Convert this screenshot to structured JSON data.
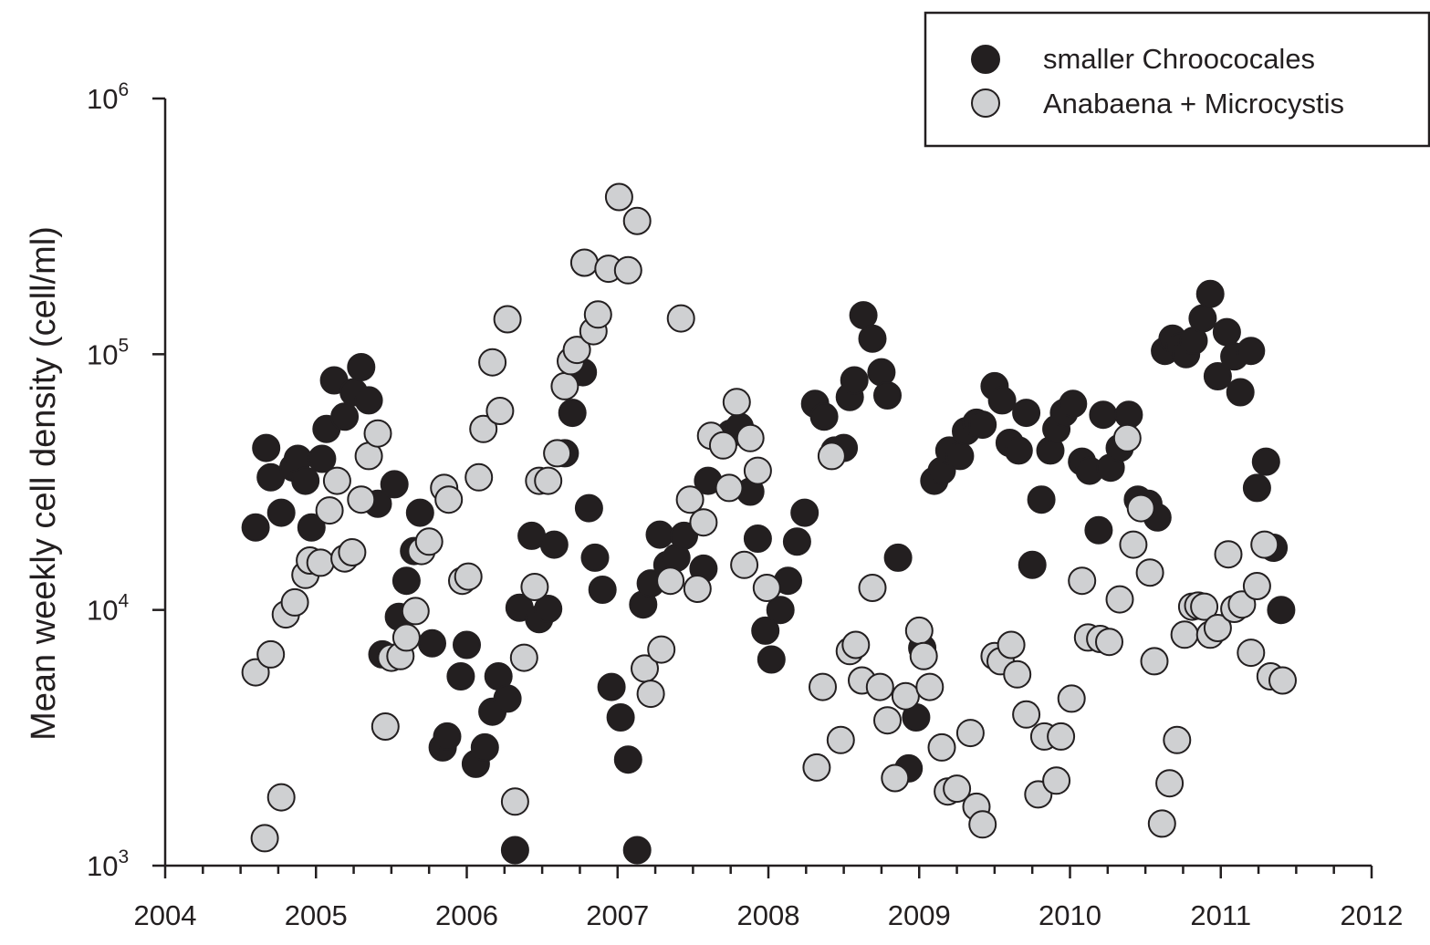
{
  "chart_data": {
    "type": "scatter",
    "title": "",
    "xlabel": "",
    "ylabel": "Mean weekly cell density (cell/ml)",
    "x_ticks": [
      "2004",
      "2005",
      "2006",
      "2007",
      "2008",
      "2009",
      "2010",
      "2011",
      "2012"
    ],
    "xlim": [
      2004,
      2012
    ],
    "y_scale": "log",
    "ylim": [
      1000,
      1000000
    ],
    "y_ticks": [
      {
        "base": "10",
        "exp": "3"
      },
      {
        "base": "10",
        "exp": "4"
      },
      {
        "base": "10",
        "exp": "5"
      },
      {
        "base": "10",
        "exp": "6"
      }
    ],
    "grid": false,
    "legend_position": "top-right",
    "colors": {
      "series1": "#231f20",
      "series2": "#cfd0d2",
      "outline": "#231f20"
    },
    "series": [
      {
        "name": "smaller Chroococales",
        "points": [
          [
            2004.6,
            21000
          ],
          [
            2004.67,
            43000
          ],
          [
            2004.7,
            33000
          ],
          [
            2004.77,
            24000
          ],
          [
            2004.85,
            36000
          ],
          [
            2004.88,
            39000
          ],
          [
            2004.93,
            32000
          ],
          [
            2004.97,
            21000
          ],
          [
            2005.04,
            39000
          ],
          [
            2005.07,
            51000
          ],
          [
            2005.12,
            79000
          ],
          [
            2005.19,
            57000
          ],
          [
            2005.25,
            71000
          ],
          [
            2005.3,
            89000
          ],
          [
            2005.35,
            66000
          ],
          [
            2005.41,
            26000
          ],
          [
            2005.44,
            6700
          ],
          [
            2005.52,
            31000
          ],
          [
            2005.55,
            9400
          ],
          [
            2005.6,
            13000
          ],
          [
            2005.65,
            17000
          ],
          [
            2005.69,
            24000
          ],
          [
            2005.77,
            7400
          ],
          [
            2005.84,
            2900
          ],
          [
            2005.87,
            3200
          ],
          [
            2005.96,
            5500
          ],
          [
            2006.0,
            7300
          ],
          [
            2006.06,
            2500
          ],
          [
            2006.12,
            2900
          ],
          [
            2006.17,
            4000
          ],
          [
            2006.21,
            5500
          ],
          [
            2006.27,
            4500
          ],
          [
            2006.32,
            1150
          ],
          [
            2006.35,
            10200
          ],
          [
            2006.43,
            19500
          ],
          [
            2006.48,
            9200
          ],
          [
            2006.54,
            10100
          ],
          [
            2006.58,
            18000
          ],
          [
            2006.65,
            41000
          ],
          [
            2006.7,
            59000
          ],
          [
            2006.77,
            85000
          ],
          [
            2006.81,
            25000
          ],
          [
            2006.85,
            16000
          ],
          [
            2006.9,
            12000
          ],
          [
            2006.96,
            5000
          ],
          [
            2007.02,
            3800
          ],
          [
            2007.07,
            2600
          ],
          [
            2007.13,
            1150
          ],
          [
            2007.17,
            10500
          ],
          [
            2007.22,
            12700
          ],
          [
            2007.28,
            19700
          ],
          [
            2007.33,
            15000
          ],
          [
            2007.39,
            16000
          ],
          [
            2007.44,
            19500
          ],
          [
            2007.57,
            14500
          ],
          [
            2007.6,
            32000
          ],
          [
            2007.75,
            49000
          ],
          [
            2007.81,
            52000
          ],
          [
            2007.88,
            29000
          ],
          [
            2007.93,
            19000
          ],
          [
            2007.98,
            8300
          ],
          [
            2008.02,
            6400
          ],
          [
            2008.08,
            10000
          ],
          [
            2008.13,
            13000
          ],
          [
            2008.19,
            18500
          ],
          [
            2008.24,
            24000
          ],
          [
            2008.31,
            64000
          ],
          [
            2008.37,
            57000
          ],
          [
            2008.44,
            42000
          ],
          [
            2008.5,
            43000
          ],
          [
            2008.54,
            68000
          ],
          [
            2008.57,
            79000
          ],
          [
            2008.63,
            142000
          ],
          [
            2008.69,
            115000
          ],
          [
            2008.75,
            85000
          ],
          [
            2008.79,
            69000
          ],
          [
            2008.86,
            16000
          ],
          [
            2008.93,
            2400
          ],
          [
            2008.98,
            3800
          ],
          [
            2009.02,
            7100
          ],
          [
            2009.1,
            32000
          ],
          [
            2009.15,
            35000
          ],
          [
            2009.2,
            42000
          ],
          [
            2009.27,
            40000
          ],
          [
            2009.31,
            50000
          ],
          [
            2009.38,
            54000
          ],
          [
            2009.42,
            53000
          ],
          [
            2009.5,
            75000
          ],
          [
            2009.55,
            66000
          ],
          [
            2009.6,
            45000
          ],
          [
            2009.66,
            42000
          ],
          [
            2009.71,
            59000
          ],
          [
            2009.75,
            15000
          ],
          [
            2009.81,
            27000
          ],
          [
            2009.87,
            42000
          ],
          [
            2009.91,
            51000
          ],
          [
            2009.96,
            59000
          ],
          [
            2010.02,
            64000
          ],
          [
            2010.08,
            38000
          ],
          [
            2010.13,
            35000
          ],
          [
            2010.19,
            20500
          ],
          [
            2010.22,
            58000
          ],
          [
            2010.27,
            36000
          ],
          [
            2010.33,
            43000
          ],
          [
            2010.39,
            58000
          ],
          [
            2010.45,
            27000
          ],
          [
            2010.52,
            26000
          ],
          [
            2010.58,
            23000
          ],
          [
            2010.63,
            103000
          ],
          [
            2010.68,
            115000
          ],
          [
            2010.73,
            107000
          ],
          [
            2010.77,
            100000
          ],
          [
            2010.82,
            113000
          ],
          [
            2010.88,
            138000
          ],
          [
            2010.93,
            172000
          ],
          [
            2010.98,
            82000
          ],
          [
            2011.04,
            122000
          ],
          [
            2011.09,
            98000
          ],
          [
            2011.13,
            71000
          ],
          [
            2011.2,
            103000
          ],
          [
            2011.24,
            30000
          ],
          [
            2011.3,
            38000
          ],
          [
            2011.35,
            17500
          ],
          [
            2011.4,
            10000
          ]
        ]
      },
      {
        "name": "Anabaena + Microcystis",
        "points": [
          [
            2004.6,
            5700
          ],
          [
            2004.66,
            1280
          ],
          [
            2004.7,
            6700
          ],
          [
            2004.77,
            1850
          ],
          [
            2004.8,
            9600
          ],
          [
            2004.86,
            10700
          ],
          [
            2004.93,
            13700
          ],
          [
            2004.96,
            15600
          ],
          [
            2005.03,
            15300
          ],
          [
            2005.09,
            24500
          ],
          [
            2005.14,
            32000
          ],
          [
            2005.19,
            15900
          ],
          [
            2005.24,
            16800
          ],
          [
            2005.3,
            27000
          ],
          [
            2005.35,
            40000
          ],
          [
            2005.41,
            49000
          ],
          [
            2005.46,
            3500
          ],
          [
            2005.5,
            6500
          ],
          [
            2005.56,
            6600
          ],
          [
            2005.6,
            7800
          ],
          [
            2005.66,
            9900
          ],
          [
            2005.7,
            17000
          ],
          [
            2005.75,
            18500
          ],
          [
            2005.85,
            30000
          ],
          [
            2005.88,
            27000
          ],
          [
            2005.97,
            13000
          ],
          [
            2006.01,
            13500
          ],
          [
            2006.08,
            33000
          ],
          [
            2006.11,
            51000
          ],
          [
            2006.17,
            93000
          ],
          [
            2006.22,
            60000
          ],
          [
            2006.27,
            137000
          ],
          [
            2006.32,
            1780
          ],
          [
            2006.38,
            6500
          ],
          [
            2006.45,
            12300
          ],
          [
            2006.48,
            32000
          ],
          [
            2006.54,
            32000
          ],
          [
            2006.6,
            41000
          ],
          [
            2006.65,
            75000
          ],
          [
            2006.69,
            94000
          ],
          [
            2006.73,
            104000
          ],
          [
            2006.78,
            228000
          ],
          [
            2006.84,
            123000
          ],
          [
            2006.87,
            143000
          ],
          [
            2006.94,
            216000
          ],
          [
            2007.01,
            412000
          ],
          [
            2007.07,
            213000
          ],
          [
            2007.13,
            332000
          ],
          [
            2007.18,
            5900
          ],
          [
            2007.22,
            4700
          ],
          [
            2007.29,
            7000
          ],
          [
            2007.35,
            13000
          ],
          [
            2007.42,
            138000
          ],
          [
            2007.48,
            27000
          ],
          [
            2007.53,
            12100
          ],
          [
            2007.57,
            22000
          ],
          [
            2007.62,
            48000
          ],
          [
            2007.7,
            44000
          ],
          [
            2007.74,
            30000
          ],
          [
            2007.79,
            65000
          ],
          [
            2007.84,
            15000
          ],
          [
            2007.88,
            47000
          ],
          [
            2007.93,
            35000
          ],
          [
            2007.99,
            12200
          ],
          [
            2008.32,
            2420
          ],
          [
            2008.36,
            5000
          ],
          [
            2008.42,
            40000
          ],
          [
            2008.48,
            3100
          ],
          [
            2008.54,
            6900
          ],
          [
            2008.58,
            7300
          ],
          [
            2008.62,
            5300
          ],
          [
            2008.69,
            12200
          ],
          [
            2008.74,
            5000
          ],
          [
            2008.79,
            3700
          ],
          [
            2008.84,
            2200
          ],
          [
            2008.91,
            4600
          ],
          [
            2009.0,
            8300
          ],
          [
            2009.03,
            6600
          ],
          [
            2009.07,
            5000
          ],
          [
            2009.15,
            2900
          ],
          [
            2009.19,
            1950
          ],
          [
            2009.25,
            2000
          ],
          [
            2009.34,
            3300
          ],
          [
            2009.38,
            1700
          ],
          [
            2009.42,
            1450
          ],
          [
            2009.5,
            6600
          ],
          [
            2009.54,
            6300
          ],
          [
            2009.61,
            7300
          ],
          [
            2009.65,
            5600
          ],
          [
            2009.71,
            3900
          ],
          [
            2009.79,
            1900
          ],
          [
            2009.83,
            3200
          ],
          [
            2009.91,
            2150
          ],
          [
            2009.94,
            3200
          ],
          [
            2010.01,
            4500
          ],
          [
            2010.08,
            13000
          ],
          [
            2010.12,
            7800
          ],
          [
            2010.2,
            7700
          ],
          [
            2010.26,
            7500
          ],
          [
            2010.33,
            11000
          ],
          [
            2010.38,
            47000
          ],
          [
            2010.42,
            18000
          ],
          [
            2010.47,
            25000
          ],
          [
            2010.53,
            14000
          ],
          [
            2010.56,
            6300
          ],
          [
            2010.61,
            1460
          ],
          [
            2010.66,
            2100
          ],
          [
            2010.71,
            3100
          ],
          [
            2010.76,
            8000
          ],
          [
            2010.81,
            10300
          ],
          [
            2010.85,
            10400
          ],
          [
            2010.89,
            10300
          ],
          [
            2010.93,
            8000
          ],
          [
            2010.98,
            8500
          ],
          [
            2011.05,
            16500
          ],
          [
            2011.09,
            10100
          ],
          [
            2011.14,
            10500
          ],
          [
            2011.2,
            6800
          ],
          [
            2011.24,
            12400
          ],
          [
            2011.29,
            18000
          ],
          [
            2011.33,
            5500
          ],
          [
            2011.41,
            5300
          ]
        ]
      }
    ]
  }
}
